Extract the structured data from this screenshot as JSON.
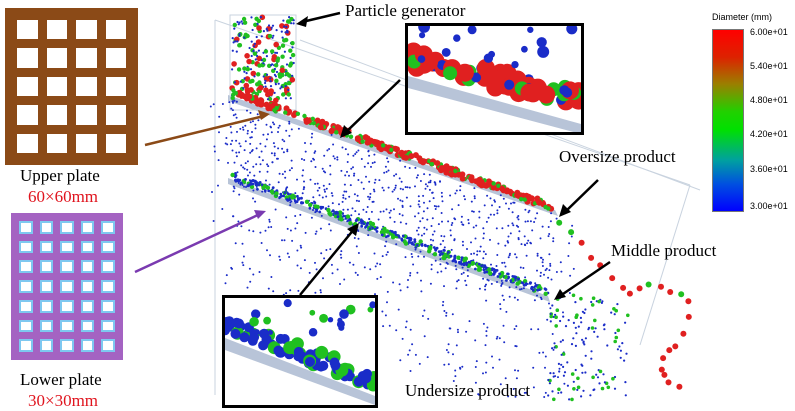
{
  "labels": {
    "particle_generator": "Particle generator",
    "oversize_product": "Oversize product",
    "middle_product": "Middle product",
    "undersize_product": "Undersize product",
    "upper_plate": "Upper plate",
    "upper_plate_size": "60×60mm",
    "lower_plate": "Lower plate",
    "lower_plate_size": "30×30mm"
  },
  "legend": {
    "title": "Diameter (mm)",
    "ticks": [
      "6.00e+01",
      "5.40e+01",
      "4.80e+01",
      "4.20e+01",
      "3.60e+01",
      "3.00e+01"
    ]
  },
  "colors": {
    "upper_plate": "#8b4a17",
    "lower_plate": "#a463c2",
    "lower_plate_hole_edge": "#7ec8f0",
    "large_particle": "#e02020",
    "mid_particle": "#20c020",
    "small_particle": "#1a2cc8",
    "arrow_upper": "#8b4a17",
    "arrow_lower": "#7a3ab0",
    "chute": "#b8c4d8"
  }
}
